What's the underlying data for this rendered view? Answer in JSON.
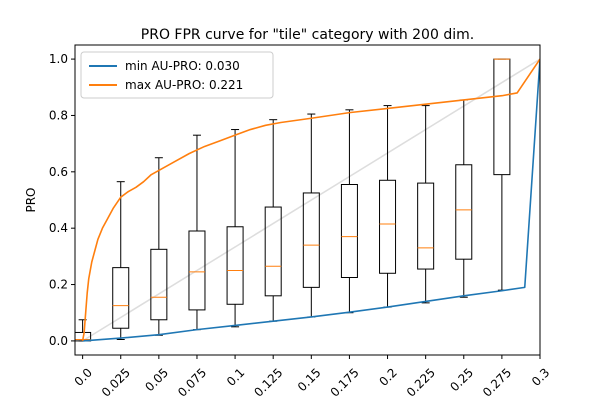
{
  "chart_data": {
    "type": "boxplot",
    "title": "PRO FPR curve for \"tile\" category with 200 dim.",
    "xlabel": "",
    "ylabel": "PRO",
    "xlim": [
      -0.005,
      0.3
    ],
    "ylim": [
      -0.05,
      1.05
    ],
    "x_ticks": [
      {
        "value": 0.0,
        "label": "0.0"
      },
      {
        "value": 0.025,
        "label": "0.025"
      },
      {
        "value": 0.05,
        "label": "0.05"
      },
      {
        "value": 0.075,
        "label": "0.075"
      },
      {
        "value": 0.1,
        "label": "0.1"
      },
      {
        "value": 0.125,
        "label": "0.125"
      },
      {
        "value": 0.15,
        "label": "0.15"
      },
      {
        "value": 0.175,
        "label": "0.175"
      },
      {
        "value": 0.2,
        "label": "0.2"
      },
      {
        "value": 0.225,
        "label": "0.225"
      },
      {
        "value": 0.25,
        "label": "0.25"
      },
      {
        "value": 0.275,
        "label": "0.275"
      },
      {
        "value": 0.3,
        "label": "0.3"
      }
    ],
    "y_ticks": [
      {
        "value": 0.0,
        "label": "0.0"
      },
      {
        "value": 0.2,
        "label": "0.2"
      },
      {
        "value": 0.4,
        "label": "0.4"
      },
      {
        "value": 0.6,
        "label": "0.6"
      },
      {
        "value": 0.8,
        "label": "0.8"
      },
      {
        "value": 1.0,
        "label": "1.0"
      }
    ],
    "grid": false,
    "legend_position": "top-left",
    "boxes": [
      {
        "x": 0.0,
        "whislo": 0.0,
        "q1": 0.0,
        "med": 0.005,
        "q3": 0.03,
        "whishi": 0.075
      },
      {
        "x": 0.025,
        "whislo": 0.005,
        "q1": 0.045,
        "med": 0.125,
        "q3": 0.26,
        "whishi": 0.565
      },
      {
        "x": 0.05,
        "whislo": 0.02,
        "q1": 0.075,
        "med": 0.155,
        "q3": 0.325,
        "whishi": 0.65
      },
      {
        "x": 0.075,
        "whislo": 0.04,
        "q1": 0.11,
        "med": 0.245,
        "q3": 0.39,
        "whishi": 0.73
      },
      {
        "x": 0.1,
        "whislo": 0.05,
        "q1": 0.13,
        "med": 0.25,
        "q3": 0.405,
        "whishi": 0.75
      },
      {
        "x": 0.125,
        "whislo": 0.07,
        "q1": 0.16,
        "med": 0.265,
        "q3": 0.475,
        "whishi": 0.785
      },
      {
        "x": 0.15,
        "whislo": 0.085,
        "q1": 0.19,
        "med": 0.34,
        "q3": 0.525,
        "whishi": 0.805
      },
      {
        "x": 0.175,
        "whislo": 0.1,
        "q1": 0.225,
        "med": 0.37,
        "q3": 0.555,
        "whishi": 0.82
      },
      {
        "x": 0.2,
        "whislo": 0.12,
        "q1": 0.24,
        "med": 0.415,
        "q3": 0.57,
        "whishi": 0.835
      },
      {
        "x": 0.225,
        "whislo": 0.135,
        "q1": 0.255,
        "med": 0.33,
        "q3": 0.56,
        "whishi": 0.835
      },
      {
        "x": 0.25,
        "whislo": 0.155,
        "q1": 0.29,
        "med": 0.465,
        "q3": 0.625,
        "whishi": 0.855
      },
      {
        "x": 0.275,
        "whislo": 0.18,
        "q1": 0.59,
        "med": 1.0,
        "q3": 1.0,
        "whishi": 1.0
      }
    ],
    "box_width": 0.0105,
    "box_color": "#000000",
    "median_color": "#ff7f0e",
    "series": [
      {
        "name": "min AU-PRO: 0.030",
        "color": "#1f77b4",
        "x": [
          0.0,
          0.025,
          0.05,
          0.075,
          0.1,
          0.125,
          0.15,
          0.175,
          0.2,
          0.225,
          0.25,
          0.275,
          0.29,
          0.3
        ],
        "y": [
          0.0,
          0.01,
          0.022,
          0.04,
          0.055,
          0.07,
          0.085,
          0.102,
          0.12,
          0.14,
          0.16,
          0.178,
          0.19,
          1.0
        ]
      },
      {
        "name": "max AU-PRO: 0.221",
        "color": "#ff7f0e",
        "x": [
          0.0,
          0.001,
          0.002,
          0.003,
          0.004,
          0.006,
          0.008,
          0.01,
          0.013,
          0.016,
          0.02,
          0.025,
          0.03,
          0.035,
          0.04,
          0.045,
          0.05,
          0.06,
          0.07,
          0.08,
          0.09,
          0.1,
          0.11,
          0.12,
          0.13,
          0.15,
          0.175,
          0.2,
          0.225,
          0.25,
          0.275,
          0.285,
          0.3
        ],
        "y": [
          0.0,
          0.03,
          0.1,
          0.17,
          0.22,
          0.28,
          0.32,
          0.36,
          0.4,
          0.43,
          0.47,
          0.51,
          0.53,
          0.545,
          0.565,
          0.59,
          0.605,
          0.635,
          0.665,
          0.69,
          0.71,
          0.73,
          0.75,
          0.765,
          0.775,
          0.79,
          0.81,
          0.825,
          0.84,
          0.855,
          0.87,
          0.88,
          1.0
        ]
      }
    ],
    "diagonal": {
      "x": [
        0.0,
        0.3
      ],
      "y": [
        0.0,
        1.0
      ],
      "color": "#dddddd"
    }
  }
}
